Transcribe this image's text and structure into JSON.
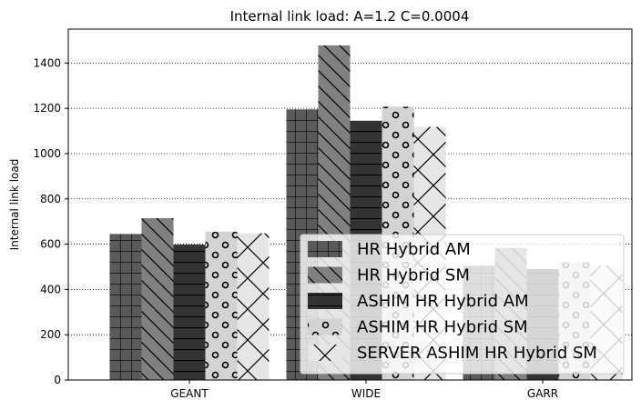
{
  "chart_data": {
    "type": "bar",
    "title": "Internal link load: A=1.2 C=0.0004",
    "xlabel": "",
    "ylabel": "Internal link load",
    "categories": [
      "GEANT",
      "WIDE",
      "GARR"
    ],
    "ylim": [
      0,
      1550
    ],
    "yticks": [
      0,
      200,
      400,
      600,
      800,
      1000,
      1200,
      1400
    ],
    "grid": "horizontal dotted",
    "legend_position": "bottom-right",
    "series": [
      {
        "name": "HR Hybrid AM",
        "values": [
          645,
          1195,
          505
        ],
        "color": "#5a5a5a",
        "hatch": "grid"
      },
      {
        "name": "HR Hybrid SM",
        "values": [
          715,
          1478,
          583
        ],
        "color": "#808080",
        "hatch": "backslash"
      },
      {
        "name": "ASHIM HR Hybrid AM",
        "values": [
          598,
          1145,
          490
        ],
        "color": "#333333",
        "hatch": "horizontal"
      },
      {
        "name": "ASHIM HR Hybrid SM",
        "values": [
          655,
          1207,
          520
        ],
        "color": "#d3d3d3",
        "hatch": "circles"
      },
      {
        "name": "SERVER ASHIM HR Hybrid SM",
        "values": [
          648,
          1118,
          505
        ],
        "color": "#e6e6e6",
        "hatch": "cross"
      }
    ]
  }
}
